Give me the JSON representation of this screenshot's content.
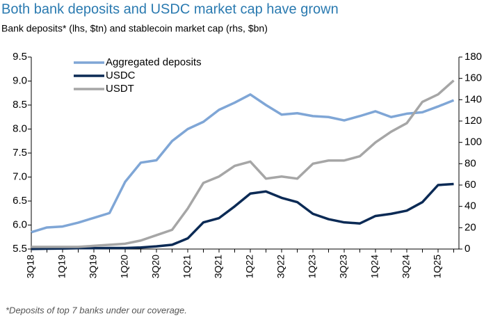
{
  "chart_data": {
    "type": "line",
    "title": "Both bank deposits and USDC market cap have grown",
    "subtitle": "Bank deposits* (lhs, $tn) and stablecoin market cap (rhs, $bn)",
    "footnote": "*Deposits of top 7 banks under our coverage.",
    "categories": [
      "3Q18",
      null,
      "1Q19",
      null,
      "3Q19",
      null,
      "1Q20",
      null,
      "3Q20",
      null,
      "1Q21",
      null,
      "3Q21",
      null,
      "1Q22",
      null,
      "3Q22",
      null,
      "1Q23",
      null,
      "3Q23",
      null,
      "1Q24",
      null,
      "3Q24",
      null,
      "1Q25",
      null
    ],
    "series": [
      {
        "name": "Aggregated deposits",
        "color": "#7fa6d6",
        "values": [
          5.85,
          5.95,
          5.97,
          6.05,
          6.15,
          6.25,
          6.9,
          7.3,
          7.35,
          7.75,
          8.0,
          8.15,
          8.4,
          8.55,
          8.72,
          8.5,
          8.3,
          8.33,
          8.27,
          8.25,
          8.18,
          8.27,
          8.37,
          8.25,
          8.32,
          8.35,
          8.47,
          8.6
        ]
      },
      {
        "name": "USDC",
        "color": "#0b2a55",
        "axis": "y2",
        "values": [
          0.1,
          0.3,
          0.5,
          0.8,
          0.8,
          1,
          1,
          1.5,
          2.5,
          4,
          10,
          25,
          29,
          40,
          52,
          54,
          48,
          44,
          33,
          28,
          25,
          24,
          31,
          33,
          36,
          44,
          60,
          61
        ]
      },
      {
        "name": "USDT",
        "color": "#a6a6a6",
        "axis": "y2",
        "values": [
          2,
          2,
          2,
          2,
          3,
          4,
          5,
          8,
          13,
          18,
          38,
          62,
          68,
          78,
          82,
          66,
          68,
          66,
          80,
          83,
          83,
          87,
          100,
          110,
          118,
          138,
          145,
          158
        ]
      }
    ],
    "ylim": [
      5.5,
      9.5
    ],
    "yticks": [
      5.5,
      {
        "value": 6,
        "label": "6.0"
      },
      6.5,
      {
        "value": 7,
        "label": "7.0"
      },
      7.5,
      {
        "value": 8,
        "label": "8.0"
      },
      8.5,
      {
        "value": 9,
        "label": "9.0"
      },
      9.5
    ],
    "y2lim": [
      0,
      180
    ],
    "y2ticks": [
      0,
      20,
      40,
      60,
      80,
      100,
      120,
      140,
      160,
      180
    ],
    "legend": "upper-left"
  }
}
